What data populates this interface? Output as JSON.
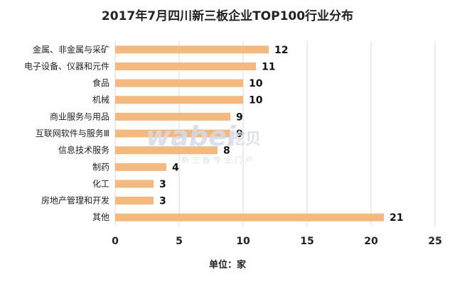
{
  "chart_data": {
    "type": "bar",
    "orientation": "horizontal",
    "title": "2017年7月四川新三板企业TOP100行业分布",
    "xlabel": "单位：家",
    "ylabel": "",
    "categories": [
      "金属、非金属与采矿",
      "电子设备、仪器和元件",
      "食品",
      "机械",
      "商业服务与用品",
      "互联网软件与服务Ⅲ",
      "信息技术服务",
      "制药",
      "化工",
      "房地产管理和开发",
      "其他"
    ],
    "values": [
      12,
      11,
      10,
      10,
      9,
      9,
      8,
      4,
      3,
      3,
      21
    ],
    "xlim": [
      0,
      25
    ],
    "xticks": [
      "0",
      "5",
      "10",
      "15",
      "20",
      "25"
    ],
    "grid": "vertical",
    "bar_color": "#f4b97e",
    "gridline_color": "#d9d9d9"
  },
  "watermark": {
    "brand": "wabei",
    "brand_cn": "挖贝",
    "subtitle": "新三板专业门户"
  }
}
